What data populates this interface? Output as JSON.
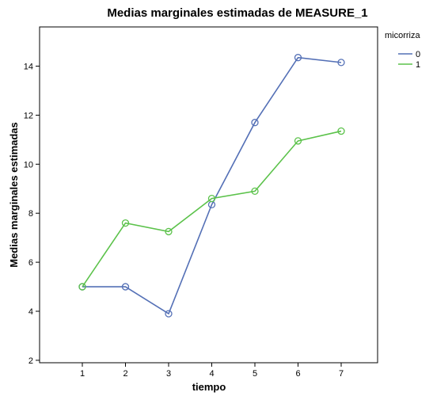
{
  "chart_data": {
    "type": "line",
    "title": "Medias marginales estimadas de MEASURE_1",
    "xlabel": "tiempo",
    "ylabel": "Medias marginales estimadas",
    "categories": [
      "1",
      "2",
      "3",
      "4",
      "5",
      "6",
      "7"
    ],
    "yticks": [
      "2",
      "4",
      "6",
      "8",
      "10",
      "12",
      "14"
    ],
    "ylim": [
      1.9,
      15.6
    ],
    "grid": false,
    "legend": {
      "title": "micorriza",
      "placement": "top-right"
    },
    "series": [
      {
        "name": "0",
        "color": "#5470b6",
        "values": [
          5.0,
          5.0,
          3.9,
          8.35,
          11.7,
          14.35,
          14.15
        ]
      },
      {
        "name": "1",
        "color": "#5bc24a",
        "values": [
          5.0,
          7.6,
          7.25,
          8.6,
          8.9,
          10.95,
          11.35
        ]
      }
    ]
  }
}
